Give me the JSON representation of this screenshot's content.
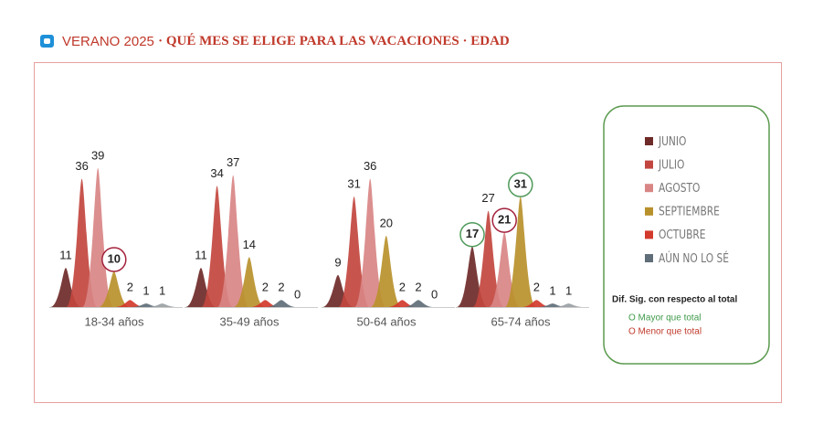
{
  "chart_data": {
    "type": "peaks",
    "title": "VERANO 2025",
    "subtitle": "· QUÉ MES SE ELIGE PARA LAS VACACIONES · EDAD",
    "categories": [
      "18-34 años",
      "35-49 años",
      "50-64 años",
      "65-74 años"
    ],
    "series": [
      {
        "name": "JUNIO",
        "color": "#6e2a28",
        "values": [
          11,
          11,
          9,
          17
        ]
      },
      {
        "name": "JULIO",
        "color": "#c2463f",
        "values": [
          36,
          34,
          31,
          27
        ]
      },
      {
        "name": "AGOSTO",
        "color": "#d98585",
        "values": [
          39,
          37,
          36,
          21
        ]
      },
      {
        "name": "SEPTIEMBRE",
        "color": "#b8912c",
        "values": [
          10,
          14,
          20,
          31
        ]
      },
      {
        "name": "OCTUBRE",
        "color": "#d23a2c",
        "values": [
          2,
          2,
          2,
          2
        ]
      },
      {
        "name": "AÚN NO LO SÉ",
        "color": "#5f6e78",
        "values": [
          1,
          2,
          2,
          1
        ]
      },
      {
        "color": "#9aa0a4",
        "values": [
          1,
          0,
          0,
          1
        ]
      }
    ],
    "highlights": [
      {
        "series": 3,
        "category": 0,
        "color": "#a3223c"
      },
      {
        "series": 0,
        "category": 3,
        "color": "#4f9a5a"
      },
      {
        "series": 2,
        "category": 3,
        "color": "#a3223c"
      },
      {
        "series": 3,
        "category": 3,
        "color": "#4f9a5a"
      }
    ],
    "note_title": "Dif. Sig. con respecto al total",
    "note_higher": {
      "text": "O Mayor que total",
      "color": "#3f9a4a"
    },
    "note_lower": {
      "text": "O Menor que total",
      "color": "#c0392b"
    }
  }
}
